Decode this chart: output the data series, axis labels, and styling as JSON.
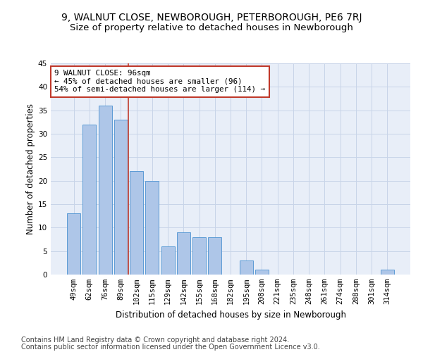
{
  "title": "9, WALNUT CLOSE, NEWBOROUGH, PETERBOROUGH, PE6 7RJ",
  "subtitle": "Size of property relative to detached houses in Newborough",
  "xlabel": "Distribution of detached houses by size in Newborough",
  "ylabel": "Number of detached properties",
  "categories": [
    "49sqm",
    "62sqm",
    "76sqm",
    "89sqm",
    "102sqm",
    "115sqm",
    "129sqm",
    "142sqm",
    "155sqm",
    "168sqm",
    "182sqm",
    "195sqm",
    "208sqm",
    "221sqm",
    "235sqm",
    "248sqm",
    "261sqm",
    "274sqm",
    "288sqm",
    "301sqm",
    "314sqm"
  ],
  "values": [
    13,
    32,
    36,
    33,
    22,
    20,
    6,
    9,
    8,
    8,
    0,
    3,
    1,
    0,
    0,
    0,
    0,
    0,
    0,
    0,
    1
  ],
  "bar_color": "#aec6e8",
  "bar_edge_color": "#5b9bd5",
  "vline_x": 3.5,
  "vline_color": "#c0392b",
  "annotation_line1": "9 WALNUT CLOSE: 96sqm",
  "annotation_line2": "← 45% of detached houses are smaller (96)",
  "annotation_line3": "54% of semi-detached houses are larger (114) →",
  "annotation_box_color": "#ffffff",
  "annotation_box_edge": "#c0392b",
  "ylim": [
    0,
    45
  ],
  "yticks": [
    0,
    5,
    10,
    15,
    20,
    25,
    30,
    35,
    40,
    45
  ],
  "grid_color": "#c8d4e8",
  "background_color": "#e8eef8",
  "footer_line1": "Contains HM Land Registry data © Crown copyright and database right 2024.",
  "footer_line2": "Contains public sector information licensed under the Open Government Licence v3.0.",
  "title_fontsize": 10,
  "subtitle_fontsize": 9.5,
  "axis_label_fontsize": 8.5,
  "tick_fontsize": 7.5,
  "annotation_fontsize": 7.8,
  "footer_fontsize": 7.0
}
